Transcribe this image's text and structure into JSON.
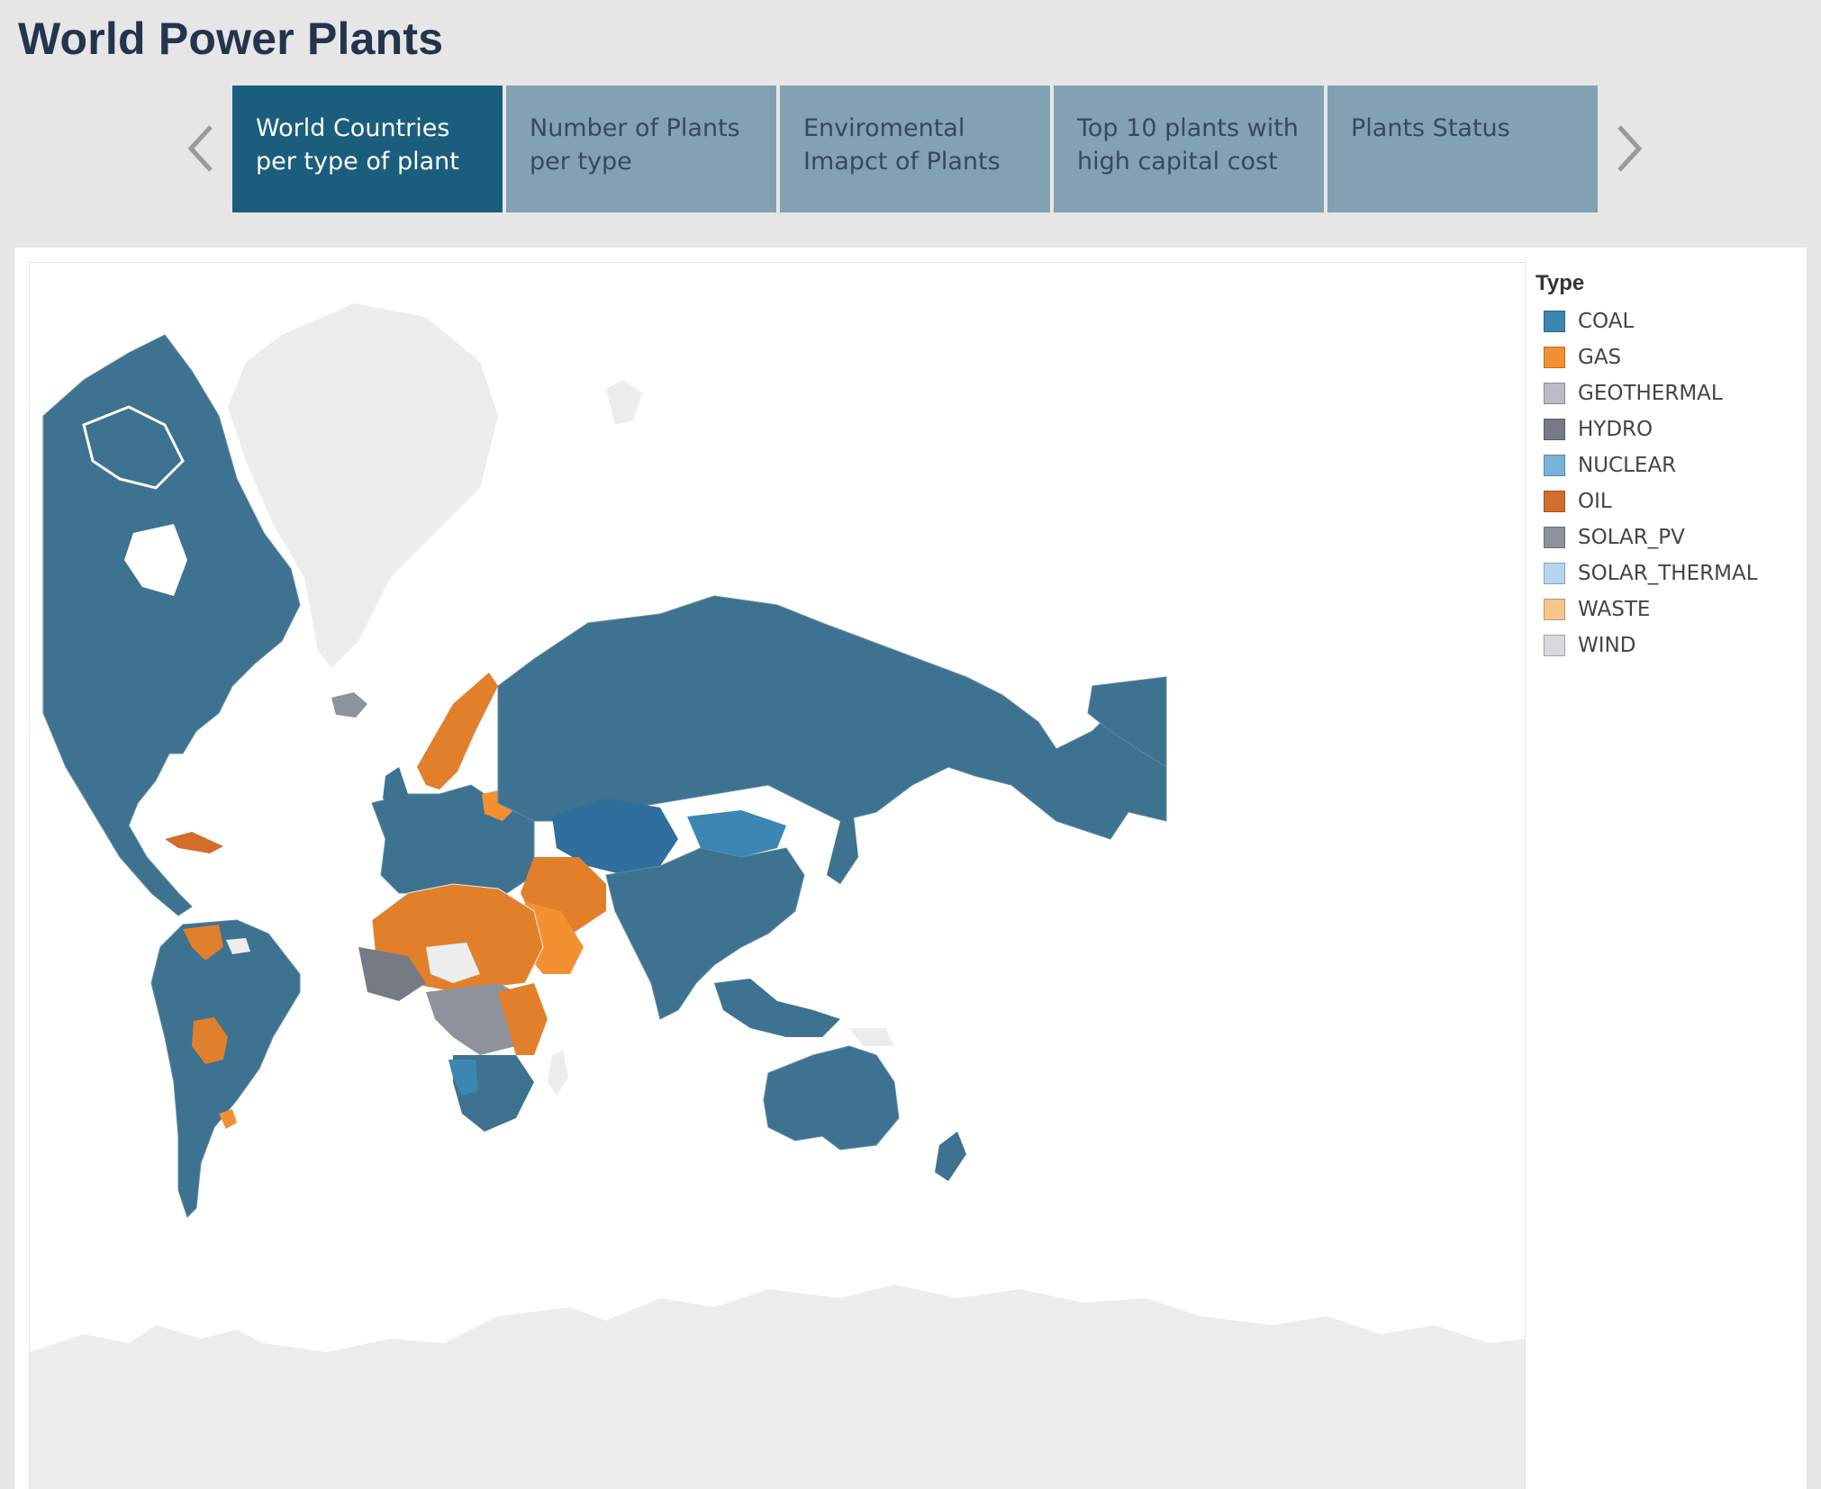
{
  "page": {
    "title": "World Power Plants"
  },
  "story": {
    "tabs": [
      {
        "label": "World Countries per type of plant",
        "active": true
      },
      {
        "label": "Number of Plants per type",
        "active": false
      },
      {
        "label": "Enviromental Imapct of Plants",
        "active": false
      },
      {
        "label": "Top 10 plants with high capital cost",
        "active": false
      },
      {
        "label": "Plants Status",
        "active": false
      }
    ],
    "prev_icon": "chevron-left-icon",
    "next_icon": "chevron-right-icon"
  },
  "legend": {
    "title": "Type",
    "items": [
      {
        "label": "COAL",
        "color": "#3b86b3"
      },
      {
        "label": "GAS",
        "color": "#f39132"
      },
      {
        "label": "GEOTHERMAL",
        "color": "#b9bcc6"
      },
      {
        "label": "HYDRO",
        "color": "#767a84"
      },
      {
        "label": "NUCLEAR",
        "color": "#79b2db"
      },
      {
        "label": "OIL",
        "color": "#d36d2a"
      },
      {
        "label": "SOLAR_PV",
        "color": "#8e929c"
      },
      {
        "label": "SOLAR_THERMAL",
        "color": "#b5d6ee"
      },
      {
        "label": "WASTE",
        "color": "#f8c58b"
      },
      {
        "label": "WIND",
        "color": "#d7d9dd"
      }
    ]
  },
  "map": {
    "colors": {
      "land_dark": "#3d7290",
      "no_data": "#ededed",
      "border": "#5f8aa3"
    }
  }
}
